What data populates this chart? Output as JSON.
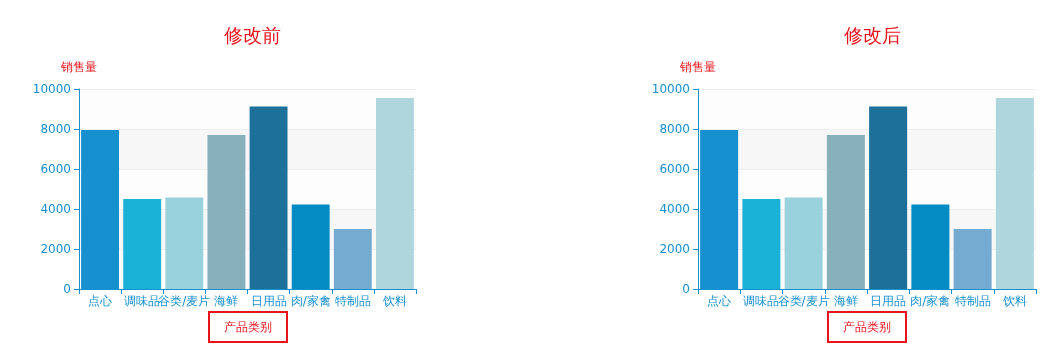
{
  "chart_data": [
    {
      "type": "bar",
      "title": "修改前",
      "xlabel": "产品类别",
      "ylabel": "销售量",
      "categories": [
        "点心",
        "调味品",
        "谷类/麦片",
        "海鲜",
        "日用品",
        "肉/家禽",
        "特制品",
        "饮料"
      ],
      "values": [
        7950,
        4500,
        4570,
        7700,
        9130,
        4220,
        3000,
        9550
      ],
      "colors": [
        "#1790cf",
        "#1bb2d8",
        "#99d2dd",
        "#88b0bb",
        "#1c7099",
        "#038cc4",
        "#75abd0",
        "#afd6dd"
      ],
      "ylim": [
        0,
        10000
      ],
      "yticks": [
        0,
        2000,
        4000,
        6000,
        8000,
        10000
      ],
      "grid": "y"
    },
    {
      "type": "bar",
      "title": "修改后",
      "xlabel": "产品类别",
      "ylabel": "销售量",
      "categories": [
        "点心",
        "调味品",
        "谷类/麦片",
        "海鲜",
        "日用品",
        "肉/家禽",
        "特制品",
        "饮料"
      ],
      "values": [
        7950,
        4500,
        4570,
        7700,
        9130,
        4220,
        3000,
        9550
      ],
      "colors": [
        "#1790cf",
        "#1bb2d8",
        "#99d2dd",
        "#88b0bb",
        "#1c7099",
        "#038cc4",
        "#75abd0",
        "#afd6dd"
      ],
      "ylim": [
        0,
        10000
      ],
      "yticks": [
        0,
        2000,
        4000,
        6000,
        8000,
        10000
      ],
      "grid": "y"
    }
  ]
}
